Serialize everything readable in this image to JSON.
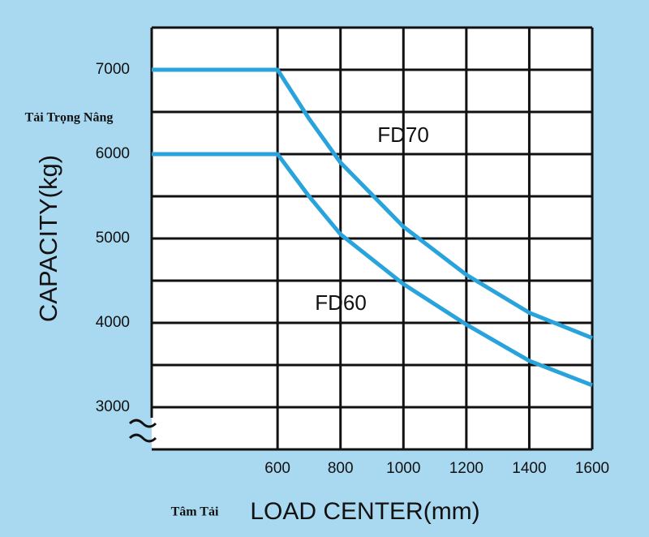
{
  "chart_data": {
    "type": "line",
    "y_title_vn": "Tải Trọng Nâng",
    "y_title": "CAPACITY(kg)",
    "x_title_vn": "Tâm Tải",
    "x_title": "LOAD CENTER(mm)",
    "x": [
      200,
      600,
      700,
      800,
      1000,
      1200,
      1400,
      1600
    ],
    "series": [
      {
        "name": "FD70",
        "color": "#29a3dc",
        "values": [
          7000,
          7000,
          6420,
          5900,
          5140,
          4570,
          4120,
          3820
        ]
      },
      {
        "name": "FD60",
        "color": "#29a3dc",
        "values": [
          6000,
          6000,
          5500,
          5050,
          4460,
          3980,
          3550,
          3260
        ]
      }
    ],
    "xlim": [
      200,
      1600
    ],
    "xticks": [
      600,
      800,
      1000,
      1200,
      1400,
      1600
    ],
    "ylim": [
      2500,
      7500
    ],
    "yticks": [
      3000,
      4000,
      5000,
      6000,
      7000
    ],
    "ygrid": [
      2500,
      3000,
      3500,
      4000,
      4500,
      5000,
      5500,
      6000,
      6500,
      7000,
      7500
    ],
    "grid": true
  }
}
